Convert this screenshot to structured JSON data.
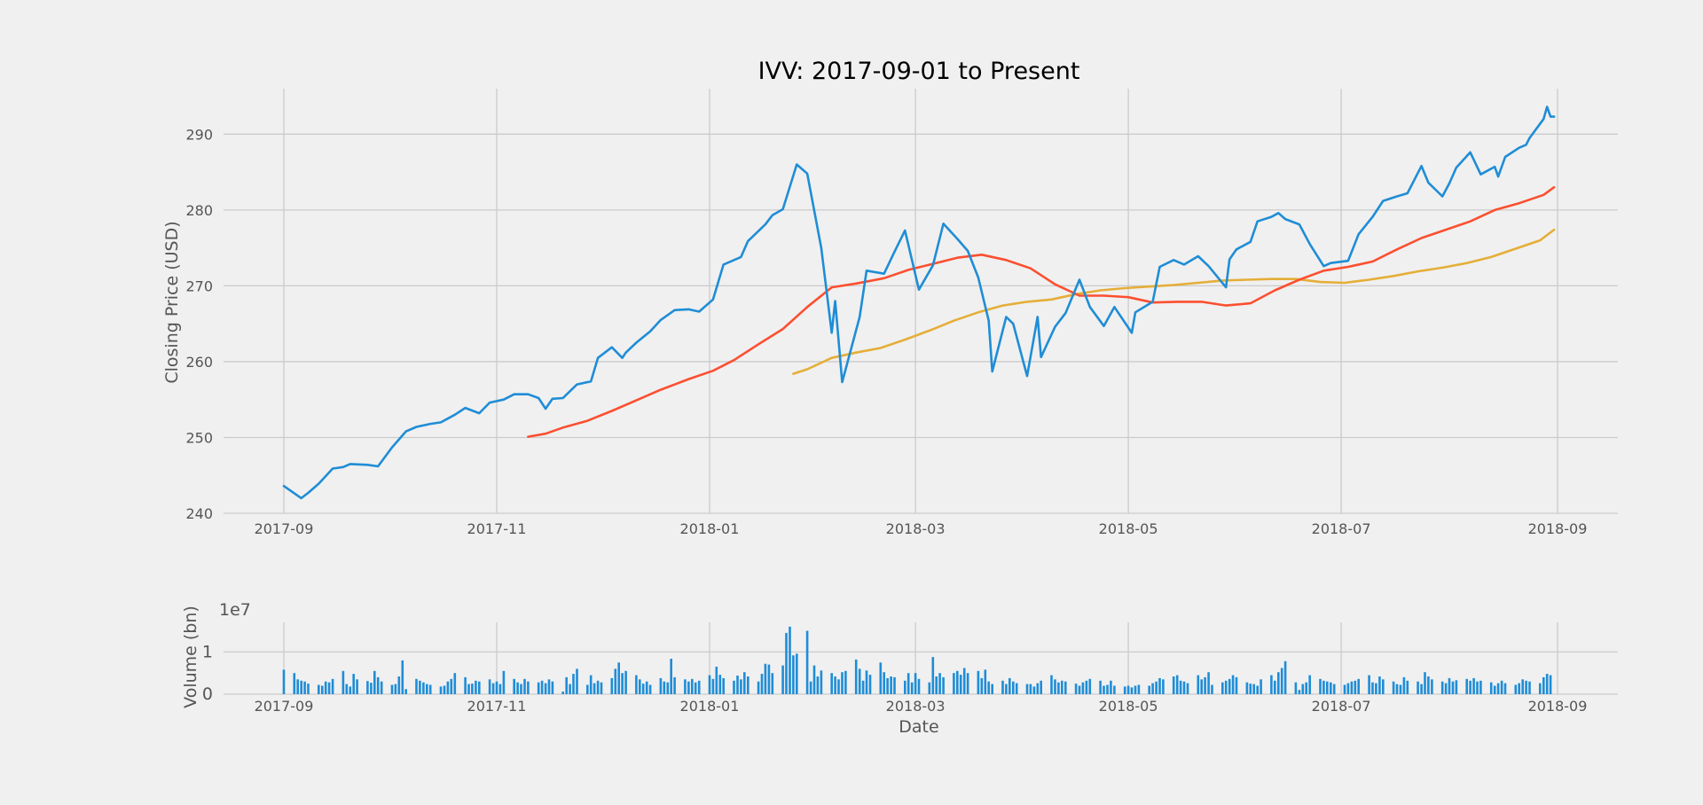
{
  "chart_data": [
    {
      "type": "line",
      "title": "IVV: 2017-09-01 to Present",
      "xlabel": "",
      "ylabel": "Closing Price (USD)",
      "x_tick_labels": [
        "2017-09",
        "2017-11",
        "2018-01",
        "2018-03",
        "2018-05",
        "2018-07",
        "2018-09"
      ],
      "y_ticks": [
        240,
        250,
        260,
        270,
        280,
        290
      ],
      "ylim": [
        240,
        296
      ],
      "grid": true,
      "colors": [
        "#1f8dd6",
        "#fc4f30",
        "#e5ae38"
      ],
      "series": [
        {
          "color": "#1f8dd6",
          "points": [
            [
              "2017-09-01",
              243.6
            ],
            [
              "2017-09-06",
              242.0
            ],
            [
              "2017-09-08",
              242.7
            ],
            [
              "2017-09-11",
              243.9
            ],
            [
              "2017-09-15",
              245.9
            ],
            [
              "2017-09-18",
              246.1
            ],
            [
              "2017-09-20",
              246.5
            ],
            [
              "2017-09-25",
              246.4
            ],
            [
              "2017-09-28",
              246.2
            ],
            [
              "2017-10-02",
              248.7
            ],
            [
              "2017-10-06",
              250.8
            ],
            [
              "2017-10-09",
              251.4
            ],
            [
              "2017-10-13",
              251.8
            ],
            [
              "2017-10-16",
              252.0
            ],
            [
              "2017-10-20",
              253.0
            ],
            [
              "2017-10-23",
              253.9
            ],
            [
              "2017-10-27",
              253.2
            ],
            [
              "2017-10-30",
              254.6
            ],
            [
              "2017-11-03",
              255.0
            ],
            [
              "2017-11-06",
              255.7
            ],
            [
              "2017-11-10",
              255.7
            ],
            [
              "2017-11-13",
              255.2
            ],
            [
              "2017-11-15",
              253.8
            ],
            [
              "2017-11-17",
              255.1
            ],
            [
              "2017-11-20",
              255.2
            ],
            [
              "2017-11-24",
              257.0
            ],
            [
              "2017-11-28",
              257.4
            ],
            [
              "2017-11-30",
              260.5
            ],
            [
              "2017-12-04",
              261.9
            ],
            [
              "2017-12-07",
              260.5
            ],
            [
              "2017-12-08",
              261.2
            ],
            [
              "2017-12-11",
              262.5
            ],
            [
              "2017-12-15",
              264.0
            ],
            [
              "2017-12-18",
              265.5
            ],
            [
              "2017-12-22",
              266.8
            ],
            [
              "2017-12-26",
              266.9
            ],
            [
              "2017-12-29",
              266.6
            ],
            [
              "2018-01-02",
              268.2
            ],
            [
              "2018-01-05",
              272.8
            ],
            [
              "2018-01-10",
              273.8
            ],
            [
              "2018-01-12",
              275.9
            ],
            [
              "2018-01-17",
              278.1
            ],
            [
              "2018-01-19",
              279.3
            ],
            [
              "2018-01-22",
              280.1
            ],
            [
              "2018-01-26",
              286.0
            ],
            [
              "2018-01-29",
              284.8
            ],
            [
              "2018-02-02",
              275.0
            ],
            [
              "2018-02-05",
              263.8
            ],
            [
              "2018-02-06",
              268.0
            ],
            [
              "2018-02-08",
              257.3
            ],
            [
              "2018-02-13",
              265.9
            ],
            [
              "2018-02-15",
              272.0
            ],
            [
              "2018-02-20",
              271.6
            ],
            [
              "2018-02-23",
              274.5
            ],
            [
              "2018-02-26",
              277.3
            ],
            [
              "2018-03-02",
              269.5
            ],
            [
              "2018-03-06",
              272.7
            ],
            [
              "2018-03-09",
              278.2
            ],
            [
              "2018-03-13",
              276.2
            ],
            [
              "2018-03-16",
              274.6
            ],
            [
              "2018-03-19",
              271.1
            ],
            [
              "2018-03-22",
              265.4
            ],
            [
              "2018-03-23",
              258.7
            ],
            [
              "2018-03-27",
              265.9
            ],
            [
              "2018-03-29",
              265.0
            ],
            [
              "2018-04-02",
              258.1
            ],
            [
              "2018-04-05",
              265.9
            ],
            [
              "2018-04-06",
              260.6
            ],
            [
              "2018-04-10",
              264.6
            ],
            [
              "2018-04-13",
              266.4
            ],
            [
              "2018-04-17",
              270.8
            ],
            [
              "2018-04-20",
              267.2
            ],
            [
              "2018-04-24",
              264.7
            ],
            [
              "2018-04-27",
              267.2
            ],
            [
              "2018-05-02",
              263.8
            ],
            [
              "2018-05-03",
              266.5
            ],
            [
              "2018-05-08",
              267.9
            ],
            [
              "2018-05-10",
              272.5
            ],
            [
              "2018-05-14",
              273.4
            ],
            [
              "2018-05-17",
              272.8
            ],
            [
              "2018-05-21",
              273.9
            ],
            [
              "2018-05-24",
              272.6
            ],
            [
              "2018-05-29",
              269.8
            ],
            [
              "2018-05-30",
              273.5
            ],
            [
              "2018-06-01",
              274.8
            ],
            [
              "2018-06-05",
              275.8
            ],
            [
              "2018-06-07",
              278.5
            ],
            [
              "2018-06-11",
              279.1
            ],
            [
              "2018-06-13",
              279.6
            ],
            [
              "2018-06-15",
              278.8
            ],
            [
              "2018-06-19",
              278.1
            ],
            [
              "2018-06-22",
              275.5
            ],
            [
              "2018-06-26",
              272.6
            ],
            [
              "2018-06-28",
              273.0
            ],
            [
              "2018-07-03",
              273.3
            ],
            [
              "2018-07-06",
              276.8
            ],
            [
              "2018-07-10",
              279.1
            ],
            [
              "2018-07-13",
              281.2
            ],
            [
              "2018-07-17",
              281.8
            ],
            [
              "2018-07-20",
              282.2
            ],
            [
              "2018-07-24",
              285.8
            ],
            [
              "2018-07-26",
              283.6
            ],
            [
              "2018-07-30",
              281.8
            ],
            [
              "2018-08-01",
              283.5
            ],
            [
              "2018-08-03",
              285.6
            ],
            [
              "2018-08-07",
              287.6
            ],
            [
              "2018-08-10",
              284.7
            ],
            [
              "2018-08-14",
              285.7
            ],
            [
              "2018-08-15",
              284.4
            ],
            [
              "2018-08-17",
              287.0
            ],
            [
              "2018-08-21",
              288.2
            ],
            [
              "2018-08-23",
              288.6
            ],
            [
              "2018-08-24",
              289.5
            ],
            [
              "2018-08-28",
              292.0
            ],
            [
              "2018-08-29",
              293.6
            ],
            [
              "2018-08-30",
              292.3
            ],
            [
              "2018-08-31",
              292.3
            ]
          ]
        },
        {
          "color": "#fc4f30",
          "points": [
            [
              "2017-11-10",
              250.1
            ],
            [
              "2017-11-15",
              250.5
            ],
            [
              "2017-11-20",
              251.3
            ],
            [
              "2017-11-27",
              252.2
            ],
            [
              "2017-12-04",
              253.5
            ],
            [
              "2017-12-11",
              254.9
            ],
            [
              "2017-12-18",
              256.3
            ],
            [
              "2017-12-26",
              257.7
            ],
            [
              "2018-01-02",
              258.8
            ],
            [
              "2018-01-08",
              260.2
            ],
            [
              "2018-01-15",
              262.3
            ],
            [
              "2018-01-22",
              264.3
            ],
            [
              "2018-01-29",
              267.2
            ],
            [
              "2018-02-05",
              269.8
            ],
            [
              "2018-02-12",
              270.3
            ],
            [
              "2018-02-20",
              271.0
            ],
            [
              "2018-02-27",
              272.1
            ],
            [
              "2018-03-06",
              272.9
            ],
            [
              "2018-03-13",
              273.7
            ],
            [
              "2018-03-20",
              274.1
            ],
            [
              "2018-03-27",
              273.4
            ],
            [
              "2018-04-03",
              272.3
            ],
            [
              "2018-04-10",
              270.2
            ],
            [
              "2018-04-17",
              268.7
            ],
            [
              "2018-04-24",
              268.7
            ],
            [
              "2018-05-01",
              268.5
            ],
            [
              "2018-05-08",
              267.8
            ],
            [
              "2018-05-15",
              267.9
            ],
            [
              "2018-05-22",
              267.9
            ],
            [
              "2018-05-29",
              267.4
            ],
            [
              "2018-06-05",
              267.7
            ],
            [
              "2018-06-12",
              269.4
            ],
            [
              "2018-06-19",
              270.8
            ],
            [
              "2018-06-26",
              272.0
            ],
            [
              "2018-07-03",
              272.5
            ],
            [
              "2018-07-10",
              273.2
            ],
            [
              "2018-07-17",
              274.8
            ],
            [
              "2018-07-24",
              276.3
            ],
            [
              "2018-07-31",
              277.4
            ],
            [
              "2018-08-07",
              278.5
            ],
            [
              "2018-08-14",
              280.0
            ],
            [
              "2018-08-21",
              280.9
            ],
            [
              "2018-08-28",
              282.0
            ],
            [
              "2018-08-31",
              283.0
            ]
          ]
        },
        {
          "color": "#e5ae38",
          "points": [
            [
              "2018-01-25",
              258.4
            ],
            [
              "2018-01-29",
              259.0
            ],
            [
              "2018-02-05",
              260.5
            ],
            [
              "2018-02-12",
              261.2
            ],
            [
              "2018-02-19",
              261.8
            ],
            [
              "2018-02-26",
              262.9
            ],
            [
              "2018-03-05",
              264.1
            ],
            [
              "2018-03-12",
              265.4
            ],
            [
              "2018-03-19",
              266.5
            ],
            [
              "2018-03-26",
              267.4
            ],
            [
              "2018-04-02",
              267.9
            ],
            [
              "2018-04-09",
              268.2
            ],
            [
              "2018-04-16",
              268.9
            ],
            [
              "2018-04-23",
              269.4
            ],
            [
              "2018-04-30",
              269.7
            ],
            [
              "2018-05-07",
              269.9
            ],
            [
              "2018-05-14",
              270.1
            ],
            [
              "2018-05-21",
              270.4
            ],
            [
              "2018-05-28",
              270.7
            ],
            [
              "2018-06-04",
              270.8
            ],
            [
              "2018-06-11",
              270.9
            ],
            [
              "2018-06-18",
              270.9
            ],
            [
              "2018-06-25",
              270.5
            ],
            [
              "2018-07-02",
              270.4
            ],
            [
              "2018-07-09",
              270.8
            ],
            [
              "2018-07-16",
              271.3
            ],
            [
              "2018-07-23",
              271.9
            ],
            [
              "2018-07-30",
              272.4
            ],
            [
              "2018-08-06",
              273.0
            ],
            [
              "2018-08-13",
              273.8
            ],
            [
              "2018-08-20",
              274.9
            ],
            [
              "2018-08-27",
              276.0
            ],
            [
              "2018-08-31",
              277.4
            ]
          ]
        }
      ]
    },
    {
      "type": "bar",
      "title": "",
      "xlabel": "Date",
      "ylabel": "Volume (bn)",
      "scale_label": "1e7",
      "x_tick_labels": [
        "2017-09",
        "2017-11",
        "2018-01",
        "2018-03",
        "2018-05",
        "2018-07",
        "2018-09"
      ],
      "y_ticks": [
        0,
        1
      ],
      "ylim": [
        0,
        1.7
      ],
      "grid": true,
      "color": "#1f8dd6",
      "series_start": "2017-09-01",
      "values": [
        0.58,
        0.5,
        0.35,
        0.32,
        0.3,
        0.25,
        0.22,
        0.2,
        0.3,
        0.28,
        0.36,
        0.55,
        0.24,
        0.18,
        0.48,
        0.35,
        0.31,
        0.27,
        0.55,
        0.4,
        0.3,
        0.22,
        0.24,
        0.42,
        0.8,
        0.12,
        0.36,
        0.32,
        0.28,
        0.24,
        0.22,
        0.18,
        0.2,
        0.3,
        0.36,
        0.5,
        0.4,
        0.24,
        0.25,
        0.32,
        0.3,
        0.35,
        0.26,
        0.3,
        0.24,
        0.55,
        0.36,
        0.28,
        0.24,
        0.36,
        0.3,
        0.28,
        0.32,
        0.26,
        0.35,
        0.3,
        0.06,
        0.4,
        0.24,
        0.48,
        0.6,
        0.22,
        0.45,
        0.26,
        0.32,
        0.28,
        0.38,
        0.6,
        0.75,
        0.5,
        0.55,
        0.45,
        0.35,
        0.25,
        0.3,
        0.22,
        0.38,
        0.3,
        0.28,
        0.84,
        0.4,
        0.35,
        0.3,
        0.36,
        0.28,
        0.32,
        0.45,
        0.36,
        0.65,
        0.46,
        0.38,
        0.32,
        0.44,
        0.35,
        0.52,
        0.42,
        0.3,
        0.48,
        0.72,
        0.7,
        0.5,
        0.68,
        1.45,
        1.6,
        0.92,
        0.96,
        1.5,
        0.3,
        0.68,
        0.42,
        0.56,
        0.5,
        0.42,
        0.35,
        0.52,
        0.55,
        0.82,
        0.6,
        0.32,
        0.56,
        0.46,
        0.75,
        0.52,
        0.38,
        0.42,
        0.4,
        0.32,
        0.5,
        0.28,
        0.5,
        0.36,
        0.28,
        0.88,
        0.42,
        0.5,
        0.4,
        0.5,
        0.55,
        0.46,
        0.62,
        0.5,
        0.55,
        0.38,
        0.58,
        0.3,
        0.24,
        0.32,
        0.24,
        0.38,
        0.3,
        0.26,
        0.24,
        0.24,
        0.18,
        0.26,
        0.32,
        0.45,
        0.35,
        0.28,
        0.32,
        0.3,
        0.25,
        0.2,
        0.28,
        0.32,
        0.36,
        0.32,
        0.2,
        0.22,
        0.32,
        0.2,
        0.18,
        0.2,
        0.16,
        0.2,
        0.22,
        0.2,
        0.26,
        0.3,
        0.38,
        0.35,
        0.42,
        0.45,
        0.32,
        0.3,
        0.26,
        0.45,
        0.35,
        0.4,
        0.52,
        0.22,
        0.28,
        0.32,
        0.36,
        0.45,
        0.4,
        0.28,
        0.25,
        0.24,
        0.2,
        0.35,
        0.45,
        0.32,
        0.52,
        0.62,
        0.78,
        0.28,
        0.1,
        0.24,
        0.28,
        0.45,
        0.36,
        0.32,
        0.3,
        0.28,
        0.24,
        0.22,
        0.26,
        0.3,
        0.32,
        0.36,
        0.45,
        0.28,
        0.26,
        0.42,
        0.35,
        0.3,
        0.24,
        0.22,
        0.4,
        0.32,
        0.3,
        0.24,
        0.52,
        0.42,
        0.35,
        0.3,
        0.26,
        0.38,
        0.3,
        0.33,
        0.36,
        0.32,
        0.38,
        0.3,
        0.32,
        0.28,
        0.2,
        0.26,
        0.32,
        0.26,
        0.22,
        0.26,
        0.35,
        0.32,
        0.3,
        0.26,
        0.4,
        0.48,
        0.45
      ]
    }
  ]
}
